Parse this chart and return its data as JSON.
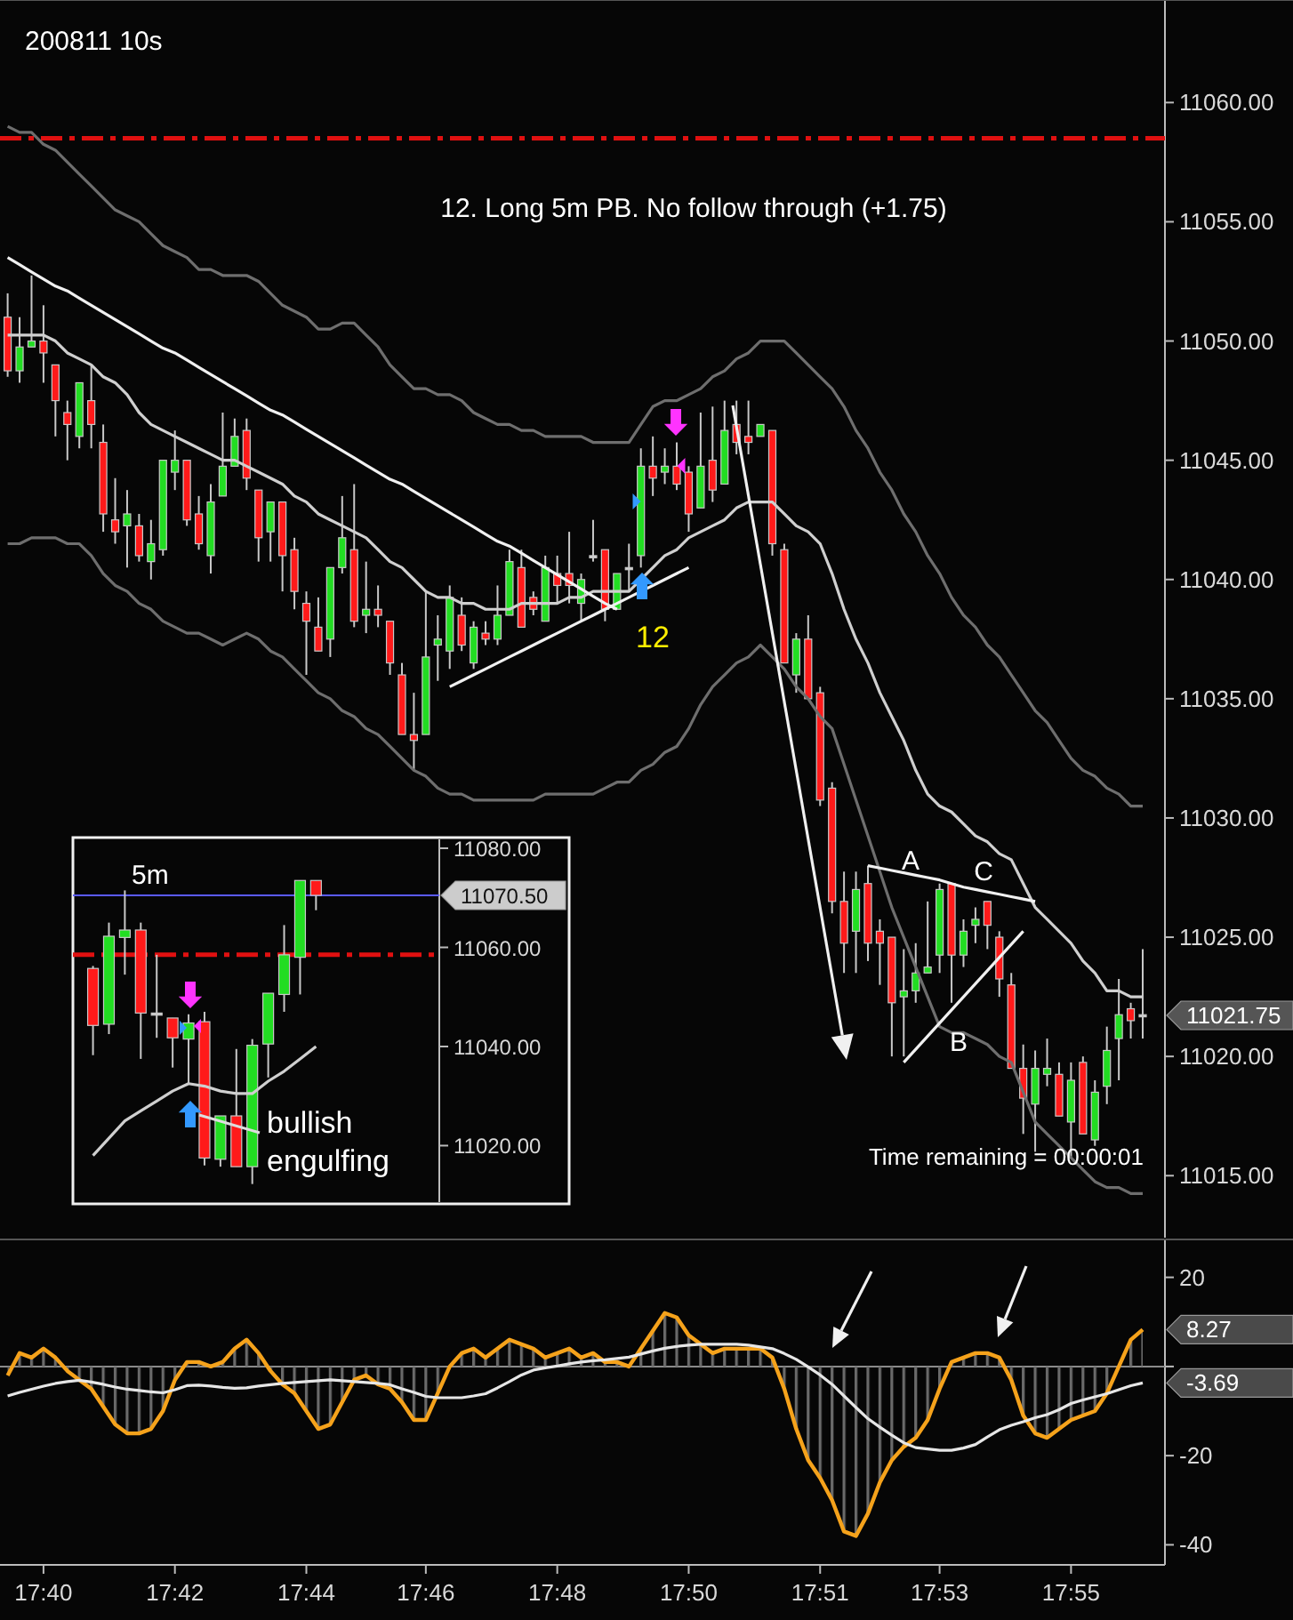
{
  "chart_data": [
    {
      "type": "candlestick",
      "title": "200811 10s",
      "categories": [
        null,
        null,
        null,
        null,
        null,
        null,
        null,
        null,
        null,
        null,
        null,
        null,
        null,
        null,
        null,
        null,
        null,
        null,
        null,
        null,
        null,
        null,
        null,
        null,
        null,
        null,
        null,
        null,
        null,
        null,
        null,
        null,
        null,
        null,
        null,
        null,
        null,
        null,
        null,
        null,
        null,
        null,
        null,
        null,
        null,
        null,
        null,
        null,
        null,
        null,
        null,
        null,
        null,
        null,
        null,
        null,
        null,
        null,
        null,
        null,
        null,
        null,
        null,
        null,
        null,
        null,
        null,
        null,
        null,
        null,
        null,
        null,
        null,
        null,
        null,
        null,
        null,
        null,
        null,
        null,
        null,
        null,
        null,
        null,
        null,
        null,
        null,
        null,
        null,
        null,
        null,
        null,
        null,
        null,
        null,
        null
      ],
      "ohlc": [
        [
          11051,
          11052,
          11048.5,
          11048.75
        ],
        [
          11048.75,
          11051,
          11048.25,
          11049.75
        ],
        [
          11049.75,
          11052.75,
          11049.75,
          11050
        ],
        [
          11050,
          11051.5,
          11048.25,
          11049.5
        ],
        [
          11049,
          11049,
          11046,
          11047.5
        ],
        [
          11047,
          11047.5,
          11045,
          11046.5
        ],
        [
          11046,
          11048.25,
          11045.5,
          11048.25
        ],
        [
          11047.5,
          11049,
          11045.5,
          11046.5
        ],
        [
          11045.75,
          11046.5,
          11042,
          11042.75
        ],
        [
          11042.5,
          11044.25,
          11041.5,
          11042
        ],
        [
          11042.25,
          11043.75,
          11040.5,
          11042.75
        ],
        [
          11042.25,
          11042.75,
          11040.75,
          11041
        ],
        [
          11040.75,
          11042.5,
          11040,
          11041.5
        ],
        [
          11041.25,
          11045,
          11041,
          11045
        ],
        [
          11044.5,
          11046.25,
          11043.75,
          11045
        ],
        [
          11045,
          11045,
          11042.25,
          11042.5
        ],
        [
          11042.75,
          11043.5,
          11041.25,
          11041.5
        ],
        [
          11041,
          11044,
          11040.25,
          11043.25
        ],
        [
          11043.5,
          11047,
          11043.5,
          11044.75
        ],
        [
          11044.75,
          11046.75,
          11044.75,
          11046
        ],
        [
          11046.25,
          11046.75,
          11043.75,
          11044.25
        ],
        [
          11043.75,
          11043.75,
          11040.75,
          11041.75
        ],
        [
          11042,
          11043.25,
          11040.75,
          11043.25
        ],
        [
          11043.25,
          11043.25,
          11039.5,
          11041
        ],
        [
          11041.25,
          11041.75,
          11038.75,
          11039.5
        ],
        [
          11039,
          11039.5,
          11036,
          11038.25
        ],
        [
          11038,
          11039.25,
          11037,
          11037
        ],
        [
          11037.5,
          11040.5,
          11036.75,
          11040.5
        ],
        [
          11040.5,
          11043.5,
          11040.25,
          11041.75
        ],
        [
          11041.25,
          11044,
          11038,
          11038.25
        ],
        [
          11038.5,
          11040.75,
          11037.75,
          11038.75
        ],
        [
          11038.75,
          11039.75,
          11038,
          11038.5
        ],
        [
          11038.25,
          11038.25,
          11036,
          11036.5
        ],
        [
          11036,
          11036.5,
          11033.5,
          11033.5
        ],
        [
          11033.5,
          11035.25,
          11032,
          11033.25
        ],
        [
          11033.5,
          11039.5,
          11033.5,
          11036.75
        ],
        [
          11037.25,
          11038.5,
          11035.75,
          11037.5
        ],
        [
          11037,
          11039.75,
          11036.25,
          11039.25
        ],
        [
          11038.5,
          11039.25,
          11037,
          11037.25
        ],
        [
          11036.5,
          11038.25,
          11036.25,
          11038
        ],
        [
          11037.75,
          11038.25,
          11037.25,
          11037.5
        ],
        [
          11037.5,
          11039.75,
          11037.25,
          11038.5
        ],
        [
          11038.5,
          11041.25,
          11038.5,
          11040.75
        ],
        [
          11040.5,
          11041.25,
          11038,
          11038
        ],
        [
          11039.25,
          11039.5,
          11038.5,
          11038.75
        ],
        [
          11038.25,
          11041,
          11038.25,
          11040.5
        ],
        [
          11040.25,
          11041,
          11039,
          11039.75
        ],
        [
          11040.25,
          11042,
          11039,
          11039.75
        ],
        [
          11039,
          11040.25,
          11038.25,
          11040
        ],
        [
          11041,
          11042.5,
          11040.75,
          11041
        ],
        [
          11041.25,
          11041.25,
          11038.25,
          11038.75
        ],
        [
          11038.75,
          11040.25,
          11038.75,
          11040.25
        ],
        [
          11040.5,
          11041.5,
          11039.5,
          11040.5
        ],
        [
          11041,
          11045.5,
          11040.5,
          11044.75
        ],
        [
          11044.75,
          11046,
          11043.5,
          11044.25
        ],
        [
          11044.5,
          11045.5,
          11044,
          11044.75
        ],
        [
          11044.75,
          11045.75,
          11043.75,
          11044
        ],
        [
          11044.5,
          11044.75,
          11042,
          11042.75
        ],
        [
          11043,
          11047,
          11043,
          11044.75
        ],
        [
          11045,
          11047.25,
          11043.25,
          11043.75
        ],
        [
          11044,
          11047.5,
          11044,
          11046.25
        ],
        [
          11046.5,
          11047.5,
          11045.25,
          11045.75
        ],
        [
          11046,
          11047.5,
          11045.25,
          11045.75
        ],
        [
          11046,
          11046.5,
          11046,
          11046.5
        ],
        [
          11046.25,
          11046.25,
          11041,
          11041.5
        ],
        [
          11041.25,
          11041.5,
          11036.5,
          11036.5
        ],
        [
          11036,
          11037.75,
          11035.25,
          11037.5
        ],
        [
          11037.5,
          11038.5,
          11035,
          11035
        ],
        [
          11035.25,
          11035.5,
          11030.5,
          11030.75
        ],
        [
          11031.25,
          11031.5,
          11026,
          11026.5
        ],
        [
          11026.5,
          11027.75,
          11023.5,
          11024.75
        ],
        [
          11025.25,
          11027.75,
          11023.5,
          11027
        ],
        [
          11027.25,
          11028,
          11024,
          11024.75
        ],
        [
          11025.25,
          11025.75,
          11023,
          11024.75
        ],
        [
          11025,
          11025,
          11020,
          11022.25
        ],
        [
          11022.5,
          11024.5,
          11020,
          11022.75
        ],
        [
          11022.75,
          11024.75,
          11022.25,
          11023.5
        ],
        [
          11023.5,
          11026.5,
          11023.5,
          11023.75
        ],
        [
          11024.25,
          11027.25,
          11023.5,
          11027
        ],
        [
          11027.25,
          11027.25,
          11022.25,
          11024.25
        ],
        [
          11024.25,
          11025.75,
          11023.75,
          11025.25
        ],
        [
          11025.5,
          11026.25,
          11024.75,
          11025.75
        ],
        [
          11026.5,
          11026.5,
          11024.5,
          11025.5
        ],
        [
          11025,
          11025.25,
          11022.5,
          11023.25
        ],
        [
          11023,
          11023.5,
          11019.5,
          11019.5
        ],
        [
          11019.5,
          11020.5,
          11016.75,
          11018.25
        ],
        [
          11018,
          11020.25,
          11016,
          11019.5
        ],
        [
          11019.25,
          11020.75,
          11018.75,
          11019.5
        ],
        [
          11019.25,
          11019.75,
          11017.5,
          11017.5
        ],
        [
          11017.25,
          11019.75,
          11015.75,
          11019
        ],
        [
          11019.75,
          11020,
          11016.75,
          11016.75
        ],
        [
          11016.5,
          11019,
          11016.25,
          11018.5
        ],
        [
          11018.75,
          11021.25,
          11018,
          11020.25
        ],
        [
          11020.75,
          11023.25,
          11019,
          11021.75
        ],
        [
          11022,
          11022.25,
          11020.75,
          11021.5
        ],
        [
          11021.75,
          11024.5,
          11020.75,
          11021.75
        ]
      ],
      "colors": [
        "#ff1a1a",
        "#22dd22",
        "#22dd22",
        "#ff1a1a",
        "#ff1a1a",
        "#ff1a1a",
        "#22dd22",
        "#ff1a1a",
        "#ff1a1a",
        "#ff1a1a",
        "#22dd22",
        "#ff1a1a",
        "#22dd22",
        "#22dd22",
        "#22dd22",
        "#ff1a1a",
        "#ff1a1a",
        "#22dd22",
        "#22dd22",
        "#22dd22",
        "#ff1a1a",
        "#ff1a1a",
        "#22dd22",
        "#ff1a1a",
        "#ff1a1a",
        "#ff1a1a",
        "#ff1a1a",
        "#22dd22",
        "#22dd22",
        "#ff1a1a",
        "#22dd22",
        "#ff1a1a",
        "#ff1a1a",
        "#ff1a1a",
        "#ff1a1a",
        "#22dd22",
        "#22dd22",
        "#22dd22",
        "#ff1a1a",
        "#22dd22",
        "#ff1a1a",
        "#22dd22",
        "#22dd22",
        "#ff1a1a",
        "#ff1a1a",
        "#22dd22",
        "#ff1a1a",
        "#ff1a1a",
        "#22dd22",
        "#d0d0d0",
        "#ff1a1a",
        "#22dd22",
        "#d0d0d0",
        "#22dd22",
        "#ff1a1a",
        "#22dd22",
        "#ff1a1a",
        "#ff1a1a",
        "#22dd22",
        "#ff1a1a",
        "#22dd22",
        "#ff1a1a",
        "#ff1a1a",
        "#22dd22",
        "#ff1a1a",
        "#ff1a1a",
        "#22dd22",
        "#ff1a1a",
        "#ff1a1a",
        "#ff1a1a",
        "#ff1a1a",
        "#22dd22",
        "#ff1a1a",
        "#ff1a1a",
        "#ff1a1a",
        "#22dd22",
        "#22dd22",
        "#22dd22",
        "#22dd22",
        "#ff1a1a",
        "#22dd22",
        "#22dd22",
        "#ff1a1a",
        "#ff1a1a",
        "#ff1a1a",
        "#ff1a1a",
        "#22dd22",
        "#22dd22",
        "#ff1a1a",
        "#22dd22",
        "#ff1a1a",
        "#22dd22",
        "#22dd22",
        "#22dd22",
        "#ff1a1a",
        "#d0d0d0"
      ],
      "series": [
        {
          "type": "line",
          "color": "#6e6e6e",
          "values": [
            11059,
            11058.75,
            11058.75,
            11058.25,
            11058,
            11057.5,
            11057,
            11056.5,
            11056,
            11055.5,
            11055.25,
            11055,
            11054.5,
            11054,
            11053.75,
            11053.5,
            11053,
            11053,
            11052.75,
            11052.75,
            11052.75,
            11052.5,
            11052,
            11051.5,
            11051.25,
            11051,
            11050.5,
            11050.5,
            11050.75,
            11050.75,
            11050.25,
            11049.75,
            11049,
            11048.5,
            11048,
            11048,
            11047.75,
            11047.75,
            11047.5,
            11047,
            11046.75,
            11046.5,
            11046.5,
            11046.25,
            11046.25,
            11046,
            11046,
            11046,
            11046,
            11045.75,
            11045.75,
            11045.75,
            11045.75,
            11046.5,
            11047.25,
            11047.5,
            11047.5,
            11047.75,
            11048,
            11048.5,
            11048.75,
            11049.25,
            11049.5,
            11050,
            11050,
            11050,
            11049.5,
            11049,
            11048.5,
            11048,
            11047.25,
            11046.25,
            11045.5,
            11044.5,
            11043.75,
            11042.75,
            11042,
            11041,
            11040.25,
            11039.25,
            11038.5,
            11038,
            11037.25,
            11036.75,
            11036,
            11035.25,
            11034.5,
            11034,
            11033.25,
            11032.5,
            11032,
            11031.75,
            11031.25,
            11031,
            11030.5,
            11030.5
          ]
        },
        {
          "type": "line",
          "color": "#cfcfcf",
          "values": [
            11050.25,
            11050.25,
            11050.25,
            11050.25,
            11050,
            11049.5,
            11049.25,
            11049,
            11048.5,
            11048.25,
            11047.75,
            11047,
            11046.5,
            11046.25,
            11046,
            11045.75,
            11045.5,
            11045.25,
            11045,
            11045,
            11044.75,
            11044.5,
            11044.25,
            11044,
            11043.5,
            11043.25,
            11042.75,
            11042.5,
            11042.25,
            11042,
            11041.75,
            11041.25,
            11040.75,
            11040.5,
            11040,
            11039.5,
            11039.25,
            11039.25,
            11039,
            11039,
            11038.75,
            11038.75,
            11038.75,
            11039,
            11039,
            11039,
            11039,
            11039.25,
            11039.25,
            11039.5,
            11039.5,
            11039.5,
            11039.5,
            11040,
            11040.5,
            11041,
            11041.25,
            11041.75,
            11042,
            11042.25,
            11042.5,
            11043,
            11043.25,
            11043.25,
            11043.25,
            11042.75,
            11042.25,
            11042,
            11041.5,
            11040.25,
            11038.75,
            11037.5,
            11036.5,
            11035.25,
            11034.25,
            11033.25,
            11032,
            11031,
            11030.5,
            11030.25,
            11029.75,
            11029.25,
            11029,
            11028.5,
            11028.25,
            11027.25,
            11026.25,
            11025.75,
            11025.25,
            11024.75,
            11024,
            11023.5,
            11022.75,
            11022.75,
            11022.5,
            11022.5
          ]
        },
        {
          "type": "line",
          "color": "#6e6e6e",
          "values": [
            11041.5,
            11041.5,
            11041.75,
            11041.75,
            11041.75,
            11041.5,
            11041.5,
            11041,
            11040.25,
            11039.75,
            11039.5,
            11039,
            11038.75,
            11038.25,
            11038,
            11037.75,
            11037.75,
            11037.5,
            11037.25,
            11037.5,
            11037.75,
            11037.5,
            11037,
            11036.75,
            11036.25,
            11035.75,
            11035.25,
            11035,
            11034.5,
            11034.25,
            11033.75,
            11033.5,
            11033,
            11032.5,
            11032,
            11031.75,
            11031.25,
            11031,
            11031,
            11030.75,
            11030.75,
            11030.75,
            11030.75,
            11030.75,
            11030.75,
            11031,
            11031,
            11031,
            11031,
            11031,
            11031.25,
            11031.5,
            11031.5,
            11032,
            11032.25,
            11032.75,
            11033,
            11033.75,
            11034.75,
            11035.5,
            11036,
            11036.5,
            11036.75,
            11037.25,
            11036.75,
            11036.25,
            11035.5,
            11035,
            11034.25,
            11033.75,
            11032.25,
            11030.75,
            11029.25,
            11027.75,
            11026.25,
            11025,
            11023.75,
            11022.5,
            11021.25,
            11021,
            11021,
            11020.75,
            11020.5,
            11020,
            11019.75,
            11018.5,
            11017.25,
            11016.75,
            11016.25,
            11015.75,
            11015.25,
            11014.75,
            11014.5,
            11014.5,
            11014.25,
            11014.25
          ]
        },
        {
          "type": "line",
          "color": "#f0f0f0",
          "values": [
            11053.5,
            11053.2,
            11052.9,
            11052.6,
            11052.3,
            11052.1,
            11051.8,
            11051.5,
            11051.2,
            11050.9,
            11050.6,
            11050.3,
            11050,
            11049.7,
            11049.5,
            11049.2,
            11048.9,
            11048.6,
            11048.3,
            11048,
            11047.7,
            11047.4,
            11047.1,
            11046.9,
            11046.6,
            11046.3,
            11046,
            11045.7,
            11045.4,
            11045.1,
            11044.8,
            11044.5,
            11044.2,
            11044,
            11043.7,
            11043.4,
            11043.1,
            11042.8,
            11042.5,
            11042.2,
            11041.9,
            11041.6,
            11041.4,
            11041.1,
            11040.8,
            11040.5,
            11040.2,
            11039.9,
            11039.6,
            11039.3,
            11039,
            11038.75,
            null,
            null,
            null,
            null,
            null,
            null,
            null,
            null,
            null,
            null,
            null,
            null,
            null,
            null,
            null,
            null,
            null,
            null,
            null,
            null,
            null,
            null,
            null,
            null,
            null,
            null,
            null,
            null,
            null,
            null,
            null,
            null,
            null,
            null,
            null,
            null,
            null,
            null,
            null,
            null,
            null,
            null,
            null,
            null
          ]
        },
        {
          "type": "line",
          "color": "#f0f0f0",
          "values": [
            null,
            null,
            null,
            null,
            null,
            null,
            null,
            null,
            null,
            null,
            null,
            null,
            null,
            null,
            null,
            null,
            null,
            null,
            null,
            null,
            null,
            null,
            null,
            null,
            null,
            null,
            null,
            null,
            null,
            null,
            null,
            null,
            null,
            null,
            null,
            null,
            null,
            11035.5,
            11035.75,
            11036,
            11036.25,
            11036.5,
            11036.75,
            11037,
            11037.25,
            11037.5,
            11037.75,
            11038,
            11038.25,
            11038.5,
            11038.75,
            11039,
            11039.25,
            11039.5,
            11039.75,
            11040,
            11040.25,
            11040.5,
            null,
            null,
            null,
            null,
            null,
            null,
            null,
            null,
            null,
            null,
            null,
            null,
            null,
            null,
            null,
            null,
            null,
            null,
            null,
            null,
            null,
            null,
            null,
            null,
            null,
            null,
            null,
            null,
            null,
            null,
            null,
            null,
            null,
            null,
            null,
            null,
            null,
            null
          ]
        },
        {
          "type": "line",
          "color": "#f0f0f0",
          "values": [
            null,
            null,
            null,
            null,
            null,
            null,
            null,
            null,
            null,
            null,
            null,
            null,
            null,
            null,
            null,
            null,
            null,
            null,
            null,
            null,
            null,
            null,
            null,
            null,
            null,
            null,
            null,
            null,
            null,
            null,
            null,
            null,
            null,
            null,
            null,
            null,
            null,
            null,
            null,
            null,
            null,
            null,
            null,
            null,
            null,
            null,
            null,
            null,
            null,
            null,
            null,
            null,
            null,
            null,
            null,
            null,
            null,
            null,
            null,
            null,
            null,
            null,
            null,
            null,
            null,
            null,
            null,
            null,
            null,
            null,
            null,
            null,
            11028,
            11027.9,
            11027.8,
            11027.7,
            11027.6,
            11027.5,
            11027.4,
            11027.25,
            11027.1,
            11027,
            11026.9,
            11026.8,
            11026.7,
            11026.6,
            11026.5,
            null,
            null,
            null,
            null,
            null,
            null,
            null,
            null,
            null
          ]
        },
        {
          "type": "line",
          "color": "#f0f0f0",
          "values": [
            null,
            null,
            null,
            null,
            null,
            null,
            null,
            null,
            null,
            null,
            null,
            null,
            null,
            null,
            null,
            null,
            null,
            null,
            null,
            null,
            null,
            null,
            null,
            null,
            null,
            null,
            null,
            null,
            null,
            null,
            null,
            null,
            null,
            null,
            null,
            null,
            null,
            null,
            null,
            null,
            null,
            null,
            null,
            null,
            null,
            null,
            null,
            null,
            null,
            null,
            null,
            null,
            null,
            null,
            null,
            null,
            null,
            null,
            null,
            null,
            null,
            null,
            null,
            null,
            null,
            null,
            null,
            null,
            null,
            null,
            null,
            null,
            null,
            null,
            null,
            11019.75,
            11020.3,
            11020.85,
            11021.4,
            11021.95,
            11022.5,
            11023.05,
            11023.6,
            11024.15,
            11024.7,
            11025.25,
            null,
            null,
            null,
            null,
            null,
            null,
            null,
            null,
            null,
            null
          ]
        }
      ],
      "ylim": [
        11012.4,
        11064.3
      ],
      "yticks": [
        {
          "value": 11015,
          "label": "11015.00"
        },
        {
          "value": 11020,
          "label": "11020.00"
        },
        {
          "value": 11025,
          "label": "11025.00"
        },
        {
          "value": 11030,
          "label": "11030.00"
        },
        {
          "value": 11035,
          "label": "11035.00"
        },
        {
          "value": 11040,
          "label": "11040.00"
        },
        {
          "value": 11045,
          "label": "11045.00"
        },
        {
          "value": 11050,
          "label": "11050.00"
        },
        {
          "value": 11055,
          "label": "11055.00"
        },
        {
          "value": 11060,
          "label": "11060.00"
        }
      ],
      "tick_labels": "y",
      "ref_lines": [
        {
          "axis": "y",
          "value": 11058.5,
          "color": "#e01010",
          "line_style": "dashed"
        }
      ],
      "annotations": [
        "12. Long 5m PB. No follow through (+1.75)",
        "Time remaining = 00:00:01",
        "12",
        "A",
        "B",
        "C",
        "11021.75"
      ]
    },
    {
      "type": "candlestick",
      "title": "5m",
      "categories": [
        null,
        null,
        null,
        null,
        null,
        null,
        null,
        null,
        null,
        null,
        null,
        null,
        null,
        null,
        null
      ],
      "ohlc": [
        [
          11055.75,
          11056.25,
          11038.25,
          11044.25
        ],
        [
          11044.5,
          11065,
          11042.5,
          11062.25
        ],
        [
          11062,
          11071.5,
          11054.5,
          11063.5
        ],
        [
          11063.5,
          11065,
          11037.5,
          11046.75
        ],
        [
          11046.75,
          11058.5,
          11041.75,
          11046.75
        ],
        [
          11045.75,
          11045.75,
          11035.75,
          11041.75
        ],
        [
          11041.5,
          11046.5,
          11032.5,
          11044.75
        ],
        [
          11045,
          11047,
          11016,
          11017.5
        ],
        [
          11017.25,
          11026,
          11015.75,
          11026
        ],
        [
          11026,
          11039.5,
          11015.75,
          11015.75
        ],
        [
          11015.75,
          11041.5,
          11012.25,
          11040.25
        ],
        [
          11040.5,
          11050.75,
          11033.75,
          11050.75
        ],
        [
          11050.5,
          11064.5,
          11047,
          11058.5
        ],
        [
          11058,
          11073.5,
          11050.5,
          11073.5
        ],
        [
          11073.5,
          11073.5,
          11067.5,
          11070.5
        ]
      ],
      "colors": [
        "#ff1a1a",
        "#22dd22",
        "#22dd22",
        "#ff1a1a",
        "#d0d0d0",
        "#ff1a1a",
        "#22dd22",
        "#ff1a1a",
        "#22dd22",
        "#ff1a1a",
        "#22dd22",
        "#22dd22",
        "#22dd22",
        "#22dd22",
        "#ff1a1a"
      ],
      "series": [
        {
          "type": "line",
          "color": "#cfcfcf",
          "values": [
            11018,
            11021.5,
            11025,
            11027,
            11029,
            11031,
            11032.5,
            11032,
            11031,
            11030.5,
            11030.5,
            11033,
            11035,
            11037.5,
            11040
          ]
        }
      ],
      "ylim": [
        11008.6,
        11081.8
      ],
      "yticks": [
        {
          "value": 11020,
          "label": "11020.00"
        },
        {
          "value": 11040,
          "label": "11040.00"
        },
        {
          "value": 11060,
          "label": "11060.00"
        },
        {
          "value": 11080,
          "label": "11080.00"
        }
      ],
      "tick_labels": "y",
      "ref_lines": [
        {
          "axis": "y",
          "value": 11058.5,
          "color": "#e01010",
          "line_style": "dashed"
        },
        {
          "axis": "y",
          "value": 11070.5,
          "color": "#5a5aff",
          "line_style": "solid",
          "label": "11070.50"
        }
      ],
      "annotations": [
        "bullish engulfing"
      ]
    },
    {
      "type": "line",
      "categories": [
        null,
        null,
        null,
        "17:40",
        null,
        null,
        null,
        null,
        null,
        null,
        null,
        null,
        null,
        null,
        "17:42",
        null,
        null,
        null,
        null,
        null,
        null,
        null,
        null,
        null,
        null,
        "17:44",
        null,
        null,
        null,
        null,
        null,
        null,
        null,
        null,
        null,
        "17:46",
        null,
        null,
        null,
        null,
        null,
        null,
        null,
        null,
        null,
        null,
        "17:48",
        null,
        null,
        null,
        null,
        null,
        null,
        null,
        null,
        null,
        null,
        "17:50",
        null,
        null,
        null,
        null,
        null,
        null,
        null,
        null,
        null,
        null,
        "17:51",
        null,
        null,
        null,
        null,
        null,
        null,
        null,
        null,
        null,
        "17:53",
        null,
        null,
        null,
        null,
        null,
        null,
        null,
        null,
        null,
        null,
        "17:55",
        null,
        null,
        null,
        null,
        null,
        null
      ],
      "series": [
        {
          "type": "area",
          "color": "#f5a21b",
          "values": [
            -2,
            3,
            2,
            4,
            2,
            -1,
            -3,
            -5,
            -9,
            -13,
            -15,
            -15,
            -14,
            -10,
            -3,
            1,
            1,
            0,
            1,
            4,
            6,
            3,
            -1,
            -4,
            -6,
            -10,
            -14,
            -13,
            -8,
            -3,
            -2,
            -4,
            -5,
            -8,
            -12,
            -12,
            -6,
            0,
            3,
            4,
            2,
            4,
            6,
            5,
            4,
            2,
            3,
            4,
            2,
            3,
            1,
            1,
            0,
            4,
            8,
            12,
            11,
            7,
            5,
            3,
            4,
            4,
            4,
            4,
            2,
            -5,
            -14,
            -21,
            -25,
            -30,
            -37,
            -38,
            -33,
            -26,
            -21,
            -18,
            -16,
            -12,
            -5,
            1,
            2,
            3,
            3,
            2,
            -3,
            -11,
            -15,
            -16,
            -14,
            -12,
            -11,
            -10,
            -6,
            0,
            6,
            8.27
          ],
          "value_labels": [
            null,
            null,
            null,
            null,
            null,
            null,
            null,
            null,
            null,
            null,
            null,
            null,
            null,
            null,
            null,
            null,
            null,
            null,
            null,
            null,
            null,
            null,
            null,
            null,
            null,
            null,
            null,
            null,
            null,
            null,
            null,
            null,
            null,
            null,
            null,
            null,
            null,
            null,
            null,
            null,
            null,
            null,
            null,
            null,
            null,
            null,
            null,
            null,
            null,
            null,
            null,
            null,
            null,
            null,
            null,
            null,
            null,
            null,
            null,
            null,
            null,
            null,
            null,
            null,
            null,
            null,
            null,
            null,
            null,
            null,
            null,
            null,
            null,
            null,
            null,
            null,
            null,
            null,
            null,
            null,
            null,
            null,
            null,
            null,
            null,
            null,
            null,
            null,
            null,
            null,
            null,
            null,
            null,
            null,
            null,
            "8.27"
          ]
        },
        {
          "type": "line",
          "color": "#e6e6e6",
          "values": [
            -6.6,
            -5.8,
            -5.1,
            -4.4,
            -3.8,
            -3.4,
            -3.1,
            -3.5,
            -4,
            -4.6,
            -5.1,
            -5.4,
            -5.7,
            -5.9,
            -5.2,
            -4.3,
            -4.2,
            -4.4,
            -4.7,
            -4.9,
            -4.8,
            -4.4,
            -4.1,
            -3.8,
            -3.6,
            -3.4,
            -3.2,
            -3,
            -3.2,
            -3.4,
            -3.6,
            -3.8,
            -4.1,
            -5,
            -5.8,
            -6.7,
            -7,
            -7,
            -7,
            -6.6,
            -6.1,
            -4.8,
            -3.4,
            -1.9,
            -0.8,
            -0.3,
            0.1,
            0.6,
            1,
            1.3,
            1.5,
            1.8,
            2.1,
            2.8,
            3.5,
            4.1,
            4.5,
            4.8,
            5,
            5,
            5,
            5,
            4.8,
            4.4,
            4,
            2.9,
            1.6,
            -0.1,
            -1.9,
            -4,
            -6.6,
            -9.2,
            -11.7,
            -13.6,
            -15.4,
            -17.1,
            -18.2,
            -18.5,
            -18.8,
            -18.8,
            -18.3,
            -17.5,
            -15.8,
            -14.2,
            -13.2,
            -12.4,
            -11.5,
            -10.8,
            -9.7,
            -8.3,
            -7.5,
            -6.8,
            -6.1,
            -5.2,
            -4.3,
            -3.69
          ],
          "value_labels": [
            null,
            null,
            null,
            null,
            null,
            null,
            null,
            null,
            null,
            null,
            null,
            null,
            null,
            null,
            null,
            null,
            null,
            null,
            null,
            null,
            null,
            null,
            null,
            null,
            null,
            null,
            null,
            null,
            null,
            null,
            null,
            null,
            null,
            null,
            null,
            null,
            null,
            null,
            null,
            null,
            null,
            null,
            null,
            null,
            null,
            null,
            null,
            null,
            null,
            null,
            null,
            null,
            null,
            null,
            null,
            null,
            null,
            null,
            null,
            null,
            null,
            null,
            null,
            null,
            null,
            null,
            null,
            null,
            null,
            null,
            null,
            null,
            null,
            null,
            null,
            null,
            null,
            null,
            null,
            null,
            null,
            null,
            null,
            null,
            null,
            null,
            null,
            null,
            null,
            null,
            null,
            null,
            null,
            null,
            null,
            "-3.69"
          ]
        }
      ],
      "ylim": [
        -44.5,
        28.5
      ],
      "yticks": [
        20,
        {
          "value": 0,
          "label": null
        },
        -20,
        -40
      ],
      "ref_lines": [
        {
          "axis": "y",
          "value": 0,
          "color": "#8a8a8a",
          "line_style": "solid"
        }
      ]
    }
  ]
}
